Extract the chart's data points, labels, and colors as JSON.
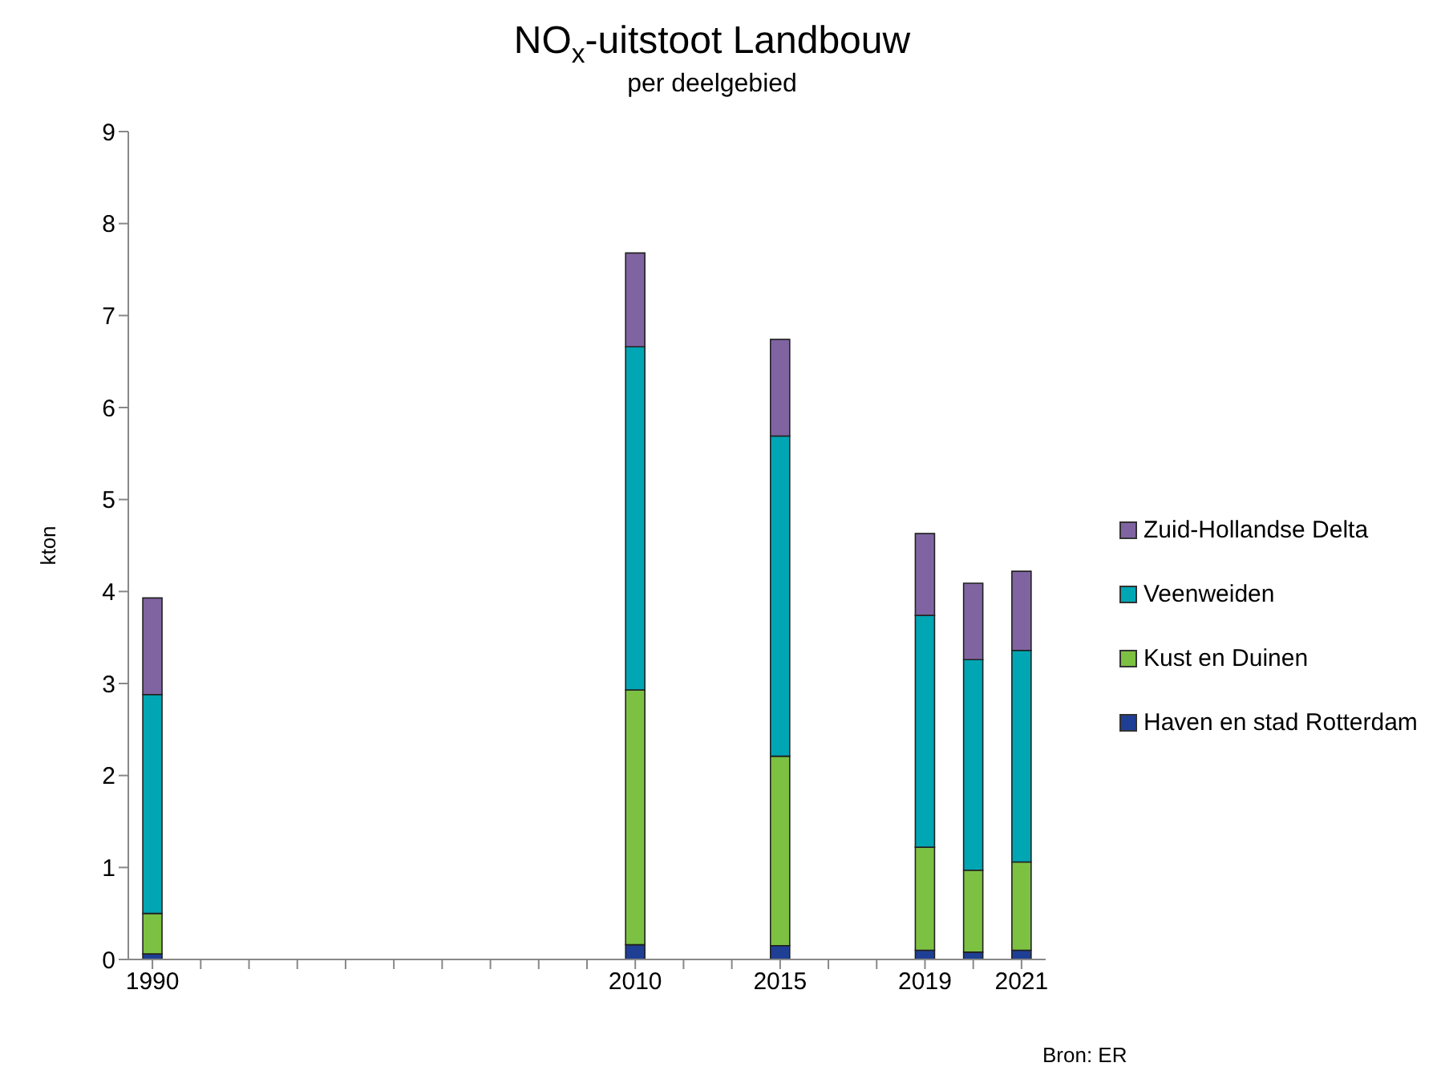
{
  "chart_data": {
    "type": "bar",
    "title": "NO$_{x}$-uitstoot Landbouw",
    "subtitle": "per deelgebied",
    "ylabel": "kton",
    "categories": [
      "1990",
      null,
      null,
      null,
      null,
      null,
      null,
      null,
      null,
      null,
      "2010",
      null,
      null,
      "2015",
      null,
      null,
      "2019",
      null,
      "2021"
    ],
    "series": [
      {
        "name": "Haven en stad Rotterdam",
        "color": "#1f3f94",
        "values": [
          0.06,
          null,
          null,
          null,
          null,
          null,
          null,
          null,
          null,
          null,
          0.16,
          null,
          null,
          0.15,
          null,
          null,
          0.1,
          0.08,
          0.1
        ]
      },
      {
        "name": "Kust en Duinen",
        "color": "#7dc142",
        "values": [
          0.44,
          null,
          null,
          null,
          null,
          null,
          null,
          null,
          null,
          null,
          2.77,
          null,
          null,
          2.06,
          null,
          null,
          1.12,
          0.89,
          0.96
        ]
      },
      {
        "name": "Veenweiden",
        "color": "#00a6b4",
        "values": [
          2.38,
          null,
          null,
          null,
          null,
          null,
          null,
          null,
          null,
          null,
          3.73,
          null,
          null,
          3.48,
          null,
          null,
          2.52,
          2.29,
          2.3
        ]
      },
      {
        "name": "Zuid-Hollandse Delta",
        "color": "#8064a2",
        "values": [
          1.05,
          null,
          null,
          null,
          null,
          null,
          null,
          null,
          null,
          null,
          1.02,
          null,
          null,
          1.05,
          null,
          null,
          0.89,
          0.83,
          0.86
        ]
      }
    ],
    "stacked": true,
    "ylim": [
      0,
      9
    ],
    "yticks": [
      0,
      1,
      2,
      3,
      4,
      5,
      6,
      7,
      8,
      9
    ],
    "grid": false,
    "legend": "right",
    "annotations": [
      "Bron: ER"
    ]
  }
}
